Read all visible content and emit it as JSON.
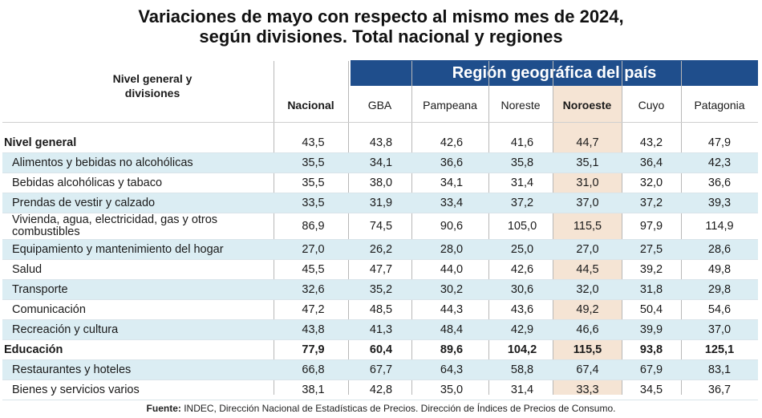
{
  "title": {
    "line1": "Variaciones de mayo con respecto al mismo mes de 2024,",
    "line2": "según divisiones. Total nacional y regiones"
  },
  "table": {
    "row_header": {
      "line1": "Nivel general y",
      "line2": "divisiones"
    },
    "region_banner": "Región geográfica del país",
    "columns": [
      "Nacional",
      "GBA",
      "Pampeana",
      "Noreste",
      "Noroeste",
      "Cuyo",
      "Patagonia"
    ],
    "highlight_color": "#e9c4a0",
    "banner_color": "#1f4e8c",
    "row_shade_color": "#dbedf3",
    "rows": [
      {
        "label": "Nivel general",
        "values": [
          "43,5",
          "43,8",
          "42,6",
          "41,6",
          "44,7",
          "43,2",
          "47,9"
        ]
      },
      {
        "label": "Alimentos y bebidas no alcohólicas",
        "values": [
          "35,5",
          "34,1",
          "36,6",
          "35,8",
          "35,1",
          "36,4",
          "42,3"
        ]
      },
      {
        "label": "Bebidas alcohólicas y tabaco",
        "values": [
          "35,5",
          "38,0",
          "34,1",
          "31,4",
          "31,0",
          "32,0",
          "36,6"
        ]
      },
      {
        "label": "Prendas de vestir y calzado",
        "values": [
          "33,5",
          "31,9",
          "33,4",
          "37,2",
          "37,0",
          "37,2",
          "39,3"
        ]
      },
      {
        "label": "Vivienda, agua, electricidad, gas y otros combustibles",
        "values": [
          "86,9",
          "74,5",
          "90,6",
          "105,0",
          "115,5",
          "97,9",
          "114,9"
        ]
      },
      {
        "label": "Equipamiento y mantenimiento del hogar",
        "values": [
          "27,0",
          "26,2",
          "28,0",
          "25,0",
          "27,0",
          "27,5",
          "28,6"
        ]
      },
      {
        "label": "Salud",
        "values": [
          "45,5",
          "47,7",
          "44,0",
          "42,6",
          "44,5",
          "39,2",
          "49,8"
        ]
      },
      {
        "label": "Transporte",
        "values": [
          "32,6",
          "35,2",
          "30,2",
          "30,6",
          "32,0",
          "31,8",
          "29,8"
        ]
      },
      {
        "label": "Comunicación",
        "values": [
          "47,2",
          "48,5",
          "44,3",
          "43,6",
          "49,2",
          "50,4",
          "54,6"
        ]
      },
      {
        "label": "Recreación y cultura",
        "values": [
          "43,8",
          "41,3",
          "48,4",
          "42,9",
          "46,6",
          "39,9",
          "37,0"
        ]
      },
      {
        "label": "Educación",
        "values": [
          "77,9",
          "60,4",
          "89,6",
          "104,2",
          "115,5",
          "93,8",
          "125,1"
        ]
      },
      {
        "label": "Restaurantes y hoteles",
        "values": [
          "66,8",
          "67,7",
          "64,3",
          "58,8",
          "67,4",
          "67,9",
          "83,1"
        ]
      },
      {
        "label": "Bienes y servicios varios",
        "values": [
          "38,1",
          "42,8",
          "35,0",
          "31,4",
          "33,3",
          "34,5",
          "36,7"
        ]
      }
    ]
  },
  "source": {
    "label": "Fuente:",
    "text": "INDEC, Dirección Nacional de Estadísticas de Precios. Dirección de Índices de Precios de Consumo."
  }
}
